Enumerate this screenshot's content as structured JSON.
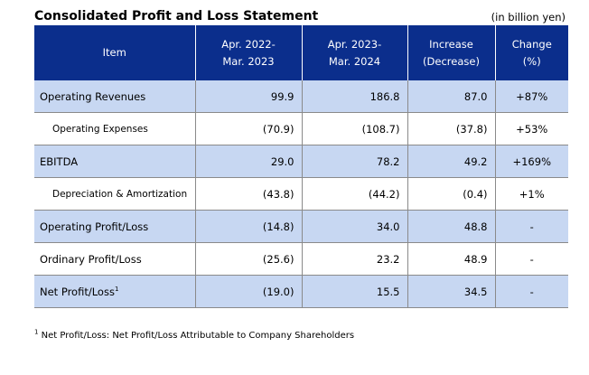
{
  "title": "Consolidated Profit and Loss Statement",
  "unit": "(in billion yen)",
  "headers": {
    "item": "Item",
    "fy2022_line1": "Apr. 2022-",
    "fy2022_line2": "Mar. 2023",
    "fy2023_line1": "Apr. 2023-",
    "fy2023_line2": "Mar. 2024",
    "increase_line1": "Increase",
    "increase_line2": "(Decrease)",
    "change_line1": "Change",
    "change_line2": "(%)"
  },
  "rows": [
    {
      "item": "Operating Revenues",
      "fy2022": "99.9",
      "fy2023": "186.8",
      "increase": "87.0",
      "change": "+87%"
    },
    {
      "item": "Operating Expenses",
      "fy2022": "(70.9)",
      "fy2023": "(108.7)",
      "increase": "(37.8)",
      "change": "+53%"
    },
    {
      "item": "EBITDA",
      "fy2022": "29.0",
      "fy2023": "78.2",
      "increase": "49.2",
      "change": "+169%"
    },
    {
      "item": "Depreciation & Amortization",
      "fy2022": "(43.8)",
      "fy2023": "(44.2)",
      "increase": "(0.4)",
      "change": "+1%"
    },
    {
      "item": "Operating Profit/Loss",
      "fy2022": "(14.8)",
      "fy2023": "34.0",
      "increase": "48.8",
      "change": "-"
    },
    {
      "item": "Ordinary Profit/Loss",
      "fy2022": "(25.6)",
      "fy2023": "23.2",
      "increase": "48.9",
      "change": "-"
    },
    {
      "item": "Net Profit/Loss",
      "item_sup": "1",
      "fy2022": "(19.0)",
      "fy2023": "15.5",
      "increase": "34.5",
      "change": "-"
    }
  ],
  "footnote": {
    "marker": "1",
    "text": " Net Profit/Loss: Net Profit/Loss Attributable to Company Shareholders"
  }
}
